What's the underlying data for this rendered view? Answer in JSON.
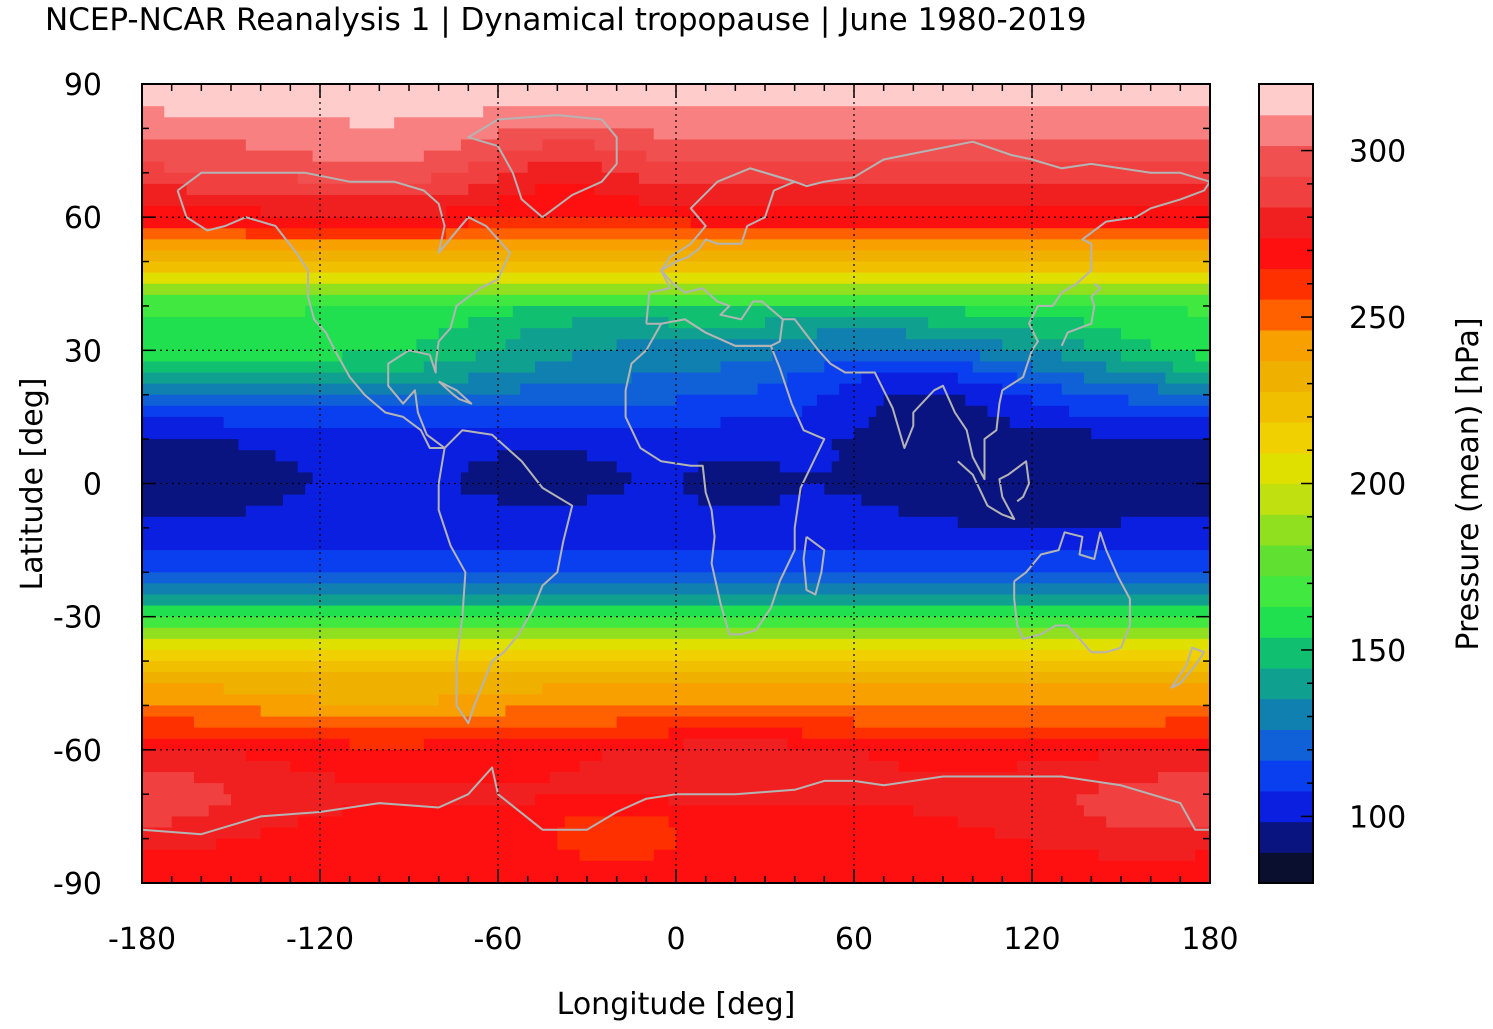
{
  "chart_data": {
    "type": "heatmap",
    "title": "NCEP-NCAR Reanalysis 1 | Dynamical tropopause | June 1980-2019",
    "xlabel": "Longitude [deg]",
    "ylabel": "Latitude [deg]",
    "colorbar_label": "Pressure (mean) [hPa]",
    "xlim": [
      -180,
      180
    ],
    "ylim": [
      -90,
      90
    ],
    "xticks": [
      -180,
      -120,
      -60,
      0,
      60,
      120,
      180
    ],
    "xtick_labels": [
      "-180",
      "-120",
      "-60",
      "0",
      "60",
      "120",
      "180"
    ],
    "yticks": [
      90,
      60,
      30,
      0,
      -30,
      -60,
      -90
    ],
    "ytick_labels": [
      "90",
      "60",
      "30",
      "0",
      "-30",
      "-60",
      "-90"
    ],
    "colorbar_range": [
      80,
      320
    ],
    "colorbar_ticks": [
      100,
      150,
      200,
      250,
      300
    ],
    "colorbar_tick_labels": [
      "100",
      "150",
      "200",
      "250",
      "300"
    ],
    "colorbar_colors": [
      "#0a0f30",
      "#0a1480",
      "#0a1fe0",
      "#0a3ff0",
      "#1060d8",
      "#1080b0",
      "#10a090",
      "#10c070",
      "#20e050",
      "#40e840",
      "#60e030",
      "#90e020",
      "#c0e010",
      "#e0e000",
      "#f0d000",
      "#f0c000",
      "#f0b000",
      "#f8a000",
      "#ff6000",
      "#ff3000",
      "#ff1010",
      "#f02020",
      "#f04040",
      "#f05050",
      "#f88080",
      "#ffcccc"
    ],
    "grid": true,
    "latitude_profile": {
      "lat": [
        90,
        80,
        70,
        60,
        50,
        40,
        30,
        20,
        10,
        0,
        -10,
        -20,
        -30,
        -40,
        -50,
        -60,
        -70,
        -80,
        -90
      ],
      "pressure_hPa": [
        320,
        305,
        290,
        270,
        230,
        160,
        140,
        120,
        102,
        100,
        102,
        115,
        160,
        225,
        245,
        270,
        275,
        270,
        265
      ]
    },
    "annotations": [
      "coastlines"
    ]
  }
}
